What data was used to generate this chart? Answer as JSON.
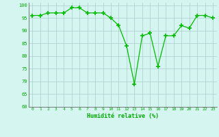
{
  "x": [
    0,
    1,
    2,
    3,
    4,
    5,
    6,
    7,
    8,
    9,
    10,
    11,
    12,
    13,
    14,
    15,
    16,
    17,
    18,
    19,
    20,
    21,
    22,
    23
  ],
  "y": [
    96,
    96,
    97,
    97,
    97,
    99,
    99,
    97,
    97,
    97,
    95,
    92,
    84,
    69,
    88,
    89,
    76,
    88,
    88,
    92,
    91,
    96,
    96,
    95
  ],
  "line_color": "#00bb00",
  "marker_color": "#00bb00",
  "bg_color": "#d4f5f0",
  "grid_color": "#aacccc",
  "xlabel": "Humidité relative (%)",
  "xlabel_color": "#00aa00",
  "tick_color": "#00aa00",
  "ylim": [
    60,
    101
  ],
  "xlim": [
    -0.5,
    23.5
  ],
  "yticks": [
    60,
    65,
    70,
    75,
    80,
    85,
    90,
    95,
    100
  ],
  "xticks": [
    0,
    1,
    2,
    3,
    4,
    5,
    6,
    7,
    8,
    9,
    10,
    11,
    12,
    13,
    14,
    15,
    16,
    17,
    18,
    19,
    20,
    21,
    22,
    23
  ]
}
